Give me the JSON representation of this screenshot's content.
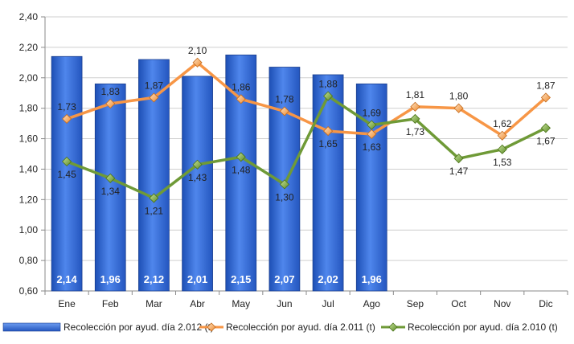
{
  "chart_data": {
    "type": "bar",
    "categories": [
      "Ene",
      "Feb",
      "Mar",
      "Abr",
      "May",
      "Jun",
      "Jul",
      "Ago",
      "Sep",
      "Oct",
      "Nov",
      "Dic"
    ],
    "ylim": [
      0.6,
      2.4
    ],
    "yticks": [
      "0,60",
      "0,80",
      "1,00",
      "1,20",
      "1,40",
      "1,60",
      "1,80",
      "2,00",
      "2,20",
      "2,40"
    ],
    "grid": true,
    "legend_position": "bottom",
    "series": [
      {
        "name": "Recolección por ayud. día 2.012 (t)",
        "kind": "bar",
        "color": "#3a6fd8",
        "values": [
          2.14,
          1.96,
          2.12,
          2.01,
          2.15,
          2.07,
          2.02,
          1.96,
          null,
          null,
          null,
          null
        ],
        "labels": [
          "2,14",
          "1,96",
          "2,12",
          "2,01",
          "2,15",
          "2,07",
          "2,02",
          "1,96",
          "",
          "",
          "",
          ""
        ]
      },
      {
        "name": "Recolección por ayud. día 2.011 (t)",
        "kind": "line",
        "color": "#f79646",
        "values": [
          1.73,
          1.83,
          1.87,
          2.1,
          1.86,
          1.78,
          1.65,
          1.63,
          1.81,
          1.8,
          1.62,
          1.87
        ],
        "labels": [
          "1,73",
          "1,83",
          "1,87",
          "2,10",
          "1,86",
          "1,78",
          "1,65",
          "1,63",
          "1,81",
          "1,80",
          "1,62",
          "1,87"
        ]
      },
      {
        "name": "Recolección por ayud. día 2.010 (t)",
        "kind": "line",
        "color": "#6f9a37",
        "values": [
          1.45,
          1.34,
          1.21,
          1.43,
          1.48,
          1.3,
          1.88,
          1.69,
          1.73,
          1.47,
          1.53,
          1.67
        ],
        "labels": [
          "1,45",
          "1,34",
          "1,21",
          "1,43",
          "1,48",
          "1,30",
          "1,88",
          "1,69",
          "1,73",
          "1,47",
          "1,53",
          "1,67"
        ]
      }
    ]
  }
}
